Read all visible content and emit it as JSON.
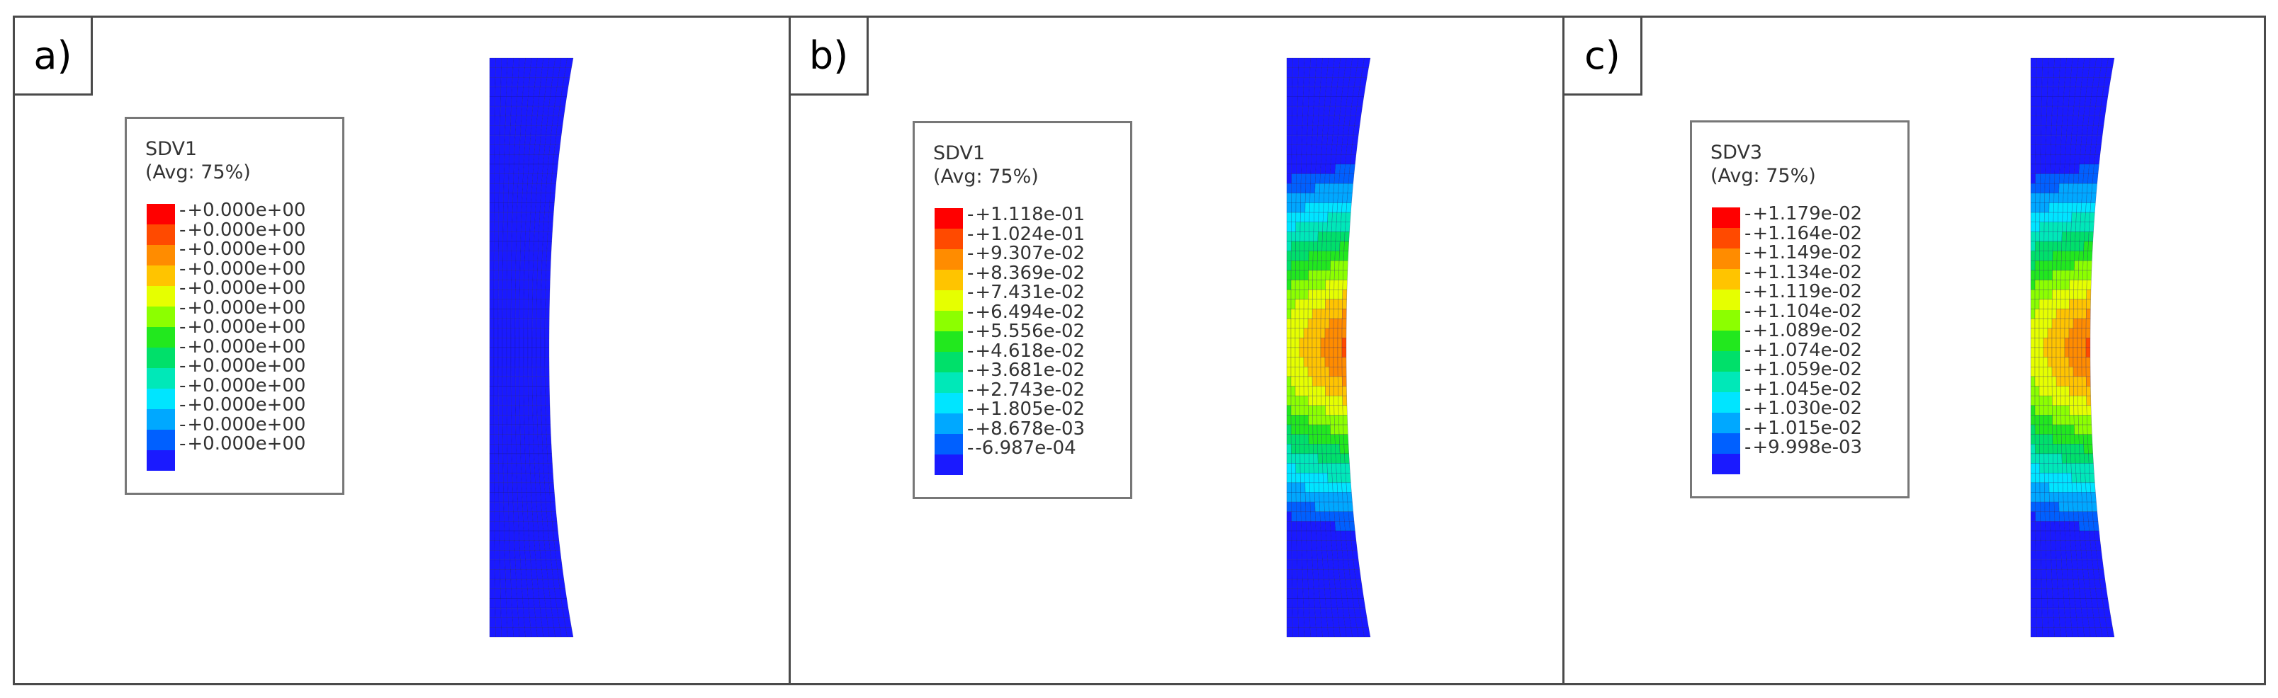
{
  "panels": [
    {
      "label": "a)",
      "legend": {
        "title": "SDV1",
        "subtitle": "(Avg: 75%)",
        "values": [
          "+0.000e+00",
          "+0.000e+00",
          "+0.000e+00",
          "+0.000e+00",
          "+0.000e+00",
          "+0.000e+00",
          "+0.000e+00",
          "+0.000e+00",
          "+0.000e+00",
          "+0.000e+00",
          "+0.000e+00",
          "+0.000e+00",
          "+0.000e+00"
        ]
      },
      "field": "uniform"
    },
    {
      "label": "b)",
      "legend": {
        "title": "SDV1",
        "subtitle": "(Avg: 75%)",
        "values": [
          "+1.118e-01",
          "+1.024e-01",
          "+9.307e-02",
          "+8.369e-02",
          "+7.431e-02",
          "+6.494e-02",
          "+5.556e-02",
          "+4.618e-02",
          "+3.681e-02",
          "+2.743e-02",
          "+1.805e-02",
          "+8.678e-03",
          "-6.987e-04"
        ]
      },
      "field": "necked"
    },
    {
      "label": "c)",
      "legend": {
        "title": "SDV3",
        "subtitle": "(Avg: 75%)",
        "values": [
          "+1.179e-02",
          "+1.164e-02",
          "+1.149e-02",
          "+1.134e-02",
          "+1.119e-02",
          "+1.104e-02",
          "+1.089e-02",
          "+1.074e-02",
          "+1.059e-02",
          "+1.045e-02",
          "+1.030e-02",
          "+1.015e-02",
          "+9.998e-03"
        ]
      },
      "field": "necked"
    }
  ],
  "colors": {
    "contour": [
      "#ff0000",
      "#ff4a00",
      "#ff8c00",
      "#ffc400",
      "#e6ff00",
      "#8cff00",
      "#22e81e",
      "#00e06a",
      "#00e8b8",
      "#00e5ff",
      "#00a8ff",
      "#0060ff",
      "#1a1aff"
    ],
    "frame": "#4a4a4a",
    "mesh_line": "#1a1a6e"
  }
}
